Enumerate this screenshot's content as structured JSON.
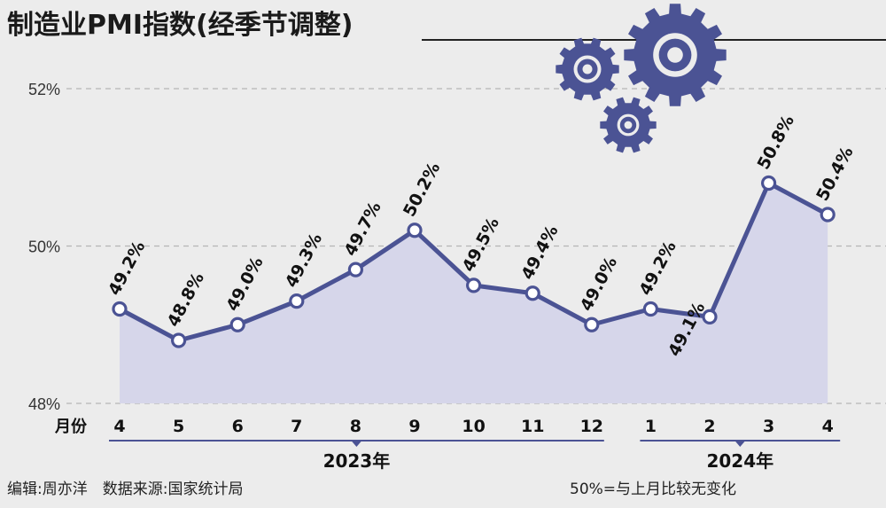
{
  "chart_data": {
    "type": "area",
    "title": "制造业PMI指数(经季节调整)",
    "x_unit": "月份",
    "categories": [
      "4",
      "5",
      "6",
      "7",
      "8",
      "9",
      "10",
      "11",
      "12",
      "1",
      "2",
      "3",
      "4"
    ],
    "values": [
      49.2,
      48.8,
      49.0,
      49.3,
      49.7,
      50.2,
      49.5,
      49.4,
      49.0,
      49.2,
      49.1,
      50.8,
      50.4
    ],
    "value_labels": [
      "49.2%",
      "48.8%",
      "49.0%",
      "49.3%",
      "49.7%",
      "50.2%",
      "49.5%",
      "49.4%",
      "49.0%",
      "49.2%",
      "49.1%",
      "50.8%",
      "50.4%"
    ],
    "ylim": [
      48,
      52
    ],
    "yticks": [
      48,
      50,
      52
    ],
    "ytick_labels": [
      "48%",
      "50%",
      "52%"
    ],
    "year_groups": [
      {
        "label": "2023年",
        "from": 0,
        "to": 8
      },
      {
        "label": "2024年",
        "from": 9,
        "to": 12
      }
    ],
    "grid": true,
    "colors": {
      "line": "#4b5394",
      "fill": "#d6d6ea",
      "gear": "#4b5394",
      "grid": "#b5b5b5"
    }
  },
  "footer": {
    "credit": "编辑:周亦洋　数据来源:国家统计局",
    "note": "50%=与上月比较无变化"
  },
  "decor": {
    "icon": "gears-icon"
  }
}
